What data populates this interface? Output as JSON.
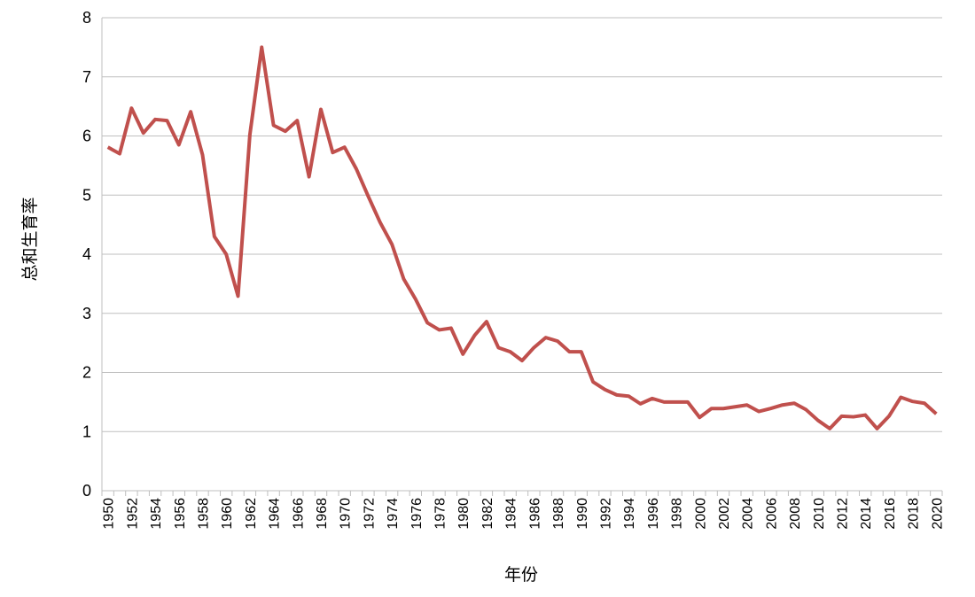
{
  "chart_data": {
    "type": "line",
    "xlabel": "年份",
    "ylabel": "总和生育率",
    "categories": [
      "1950",
      null,
      "1952",
      null,
      "1954",
      null,
      "1956",
      null,
      "1958",
      null,
      "1960",
      null,
      "1962",
      null,
      "1964",
      null,
      "1966",
      null,
      "1968",
      null,
      "1970",
      null,
      "1972",
      null,
      "1974",
      null,
      "1976",
      null,
      "1978",
      null,
      "1980",
      null,
      "1982",
      null,
      "1984",
      null,
      "1986",
      null,
      "1988",
      null,
      "1990",
      null,
      "1992",
      null,
      "1994",
      null,
      "1996",
      null,
      "1998",
      null,
      "2000",
      null,
      "2002",
      null,
      "2004",
      null,
      "2006",
      null,
      "2008",
      null,
      "2010",
      null,
      "2012",
      null,
      "2014",
      null,
      "2016",
      null,
      "2018",
      null,
      "2020"
    ],
    "series": [
      {
        "color": "#c0504d",
        "values": [
          5.81,
          5.7,
          6.47,
          6.05,
          6.28,
          6.26,
          5.85,
          6.41,
          5.68,
          4.3,
          4.0,
          3.29,
          6.02,
          7.5,
          6.18,
          6.08,
          6.26,
          5.31,
          6.45,
          5.72,
          5.81,
          5.44,
          4.98,
          4.54,
          4.17,
          3.58,
          3.24,
          2.84,
          2.72,
          2.75,
          2.31,
          2.63,
          2.86,
          2.42,
          2.35,
          2.2,
          2.42,
          2.59,
          2.53,
          2.35,
          2.35,
          1.84,
          1.71,
          1.62,
          1.6,
          1.47,
          1.56,
          1.5,
          1.5,
          1.5,
          1.24,
          1.39,
          1.39,
          1.42,
          1.45,
          1.34,
          1.39,
          1.45,
          1.48,
          1.37,
          1.19,
          1.05,
          1.26,
          1.25,
          1.28,
          1.05,
          1.26,
          1.58,
          1.51,
          1.48,
          1.3
        ]
      }
    ],
    "ylim": [
      0,
      8
    ],
    "yticks": [
      0,
      1,
      2,
      3,
      4,
      5,
      6,
      7,
      8
    ],
    "grid": true
  }
}
